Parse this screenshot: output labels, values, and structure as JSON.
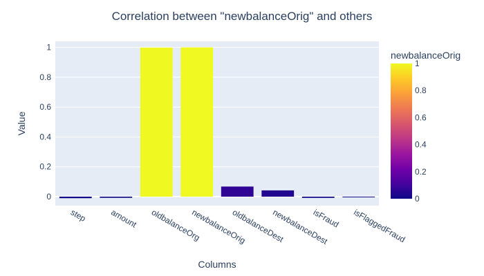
{
  "chart_data": {
    "type": "bar",
    "title": "Correlation between \"newbalanceOrig\" and others",
    "xlabel": "Columns",
    "ylabel": "Value",
    "categories": [
      "step",
      "amount",
      "oldbalanceOrg",
      "newbalanceOrig",
      "oldbalanceDest",
      "newbalanceDest",
      "isFraud",
      "isFlaggedFraud"
    ],
    "values": [
      -0.0102,
      -0.0078,
      0.9988,
      1.0,
      0.0678,
      0.0419,
      -0.0081,
      -0.0013
    ],
    "ylim": [
      -0.06,
      1.04
    ],
    "yticks": [
      "0",
      "0.2",
      "0.4",
      "0.6",
      "0.8",
      "1"
    ],
    "grid": true,
    "colorbar": {
      "title": "newbalanceOrig",
      "range": [
        0,
        1
      ],
      "ticks": [
        "0",
        "0.2",
        "0.4",
        "0.6",
        "0.8",
        "1"
      ],
      "colorscale": [
        "#0d0887",
        "#46039f",
        "#7201a8",
        "#9c179e",
        "#bd3786",
        "#d8576b",
        "#ed7953",
        "#fb9f3a",
        "#fdca26",
        "#f0f921"
      ]
    },
    "colors": {
      "plot_bg": "#e5ecf6",
      "grid": "#ffffff",
      "text": "#2a3f5f"
    }
  }
}
